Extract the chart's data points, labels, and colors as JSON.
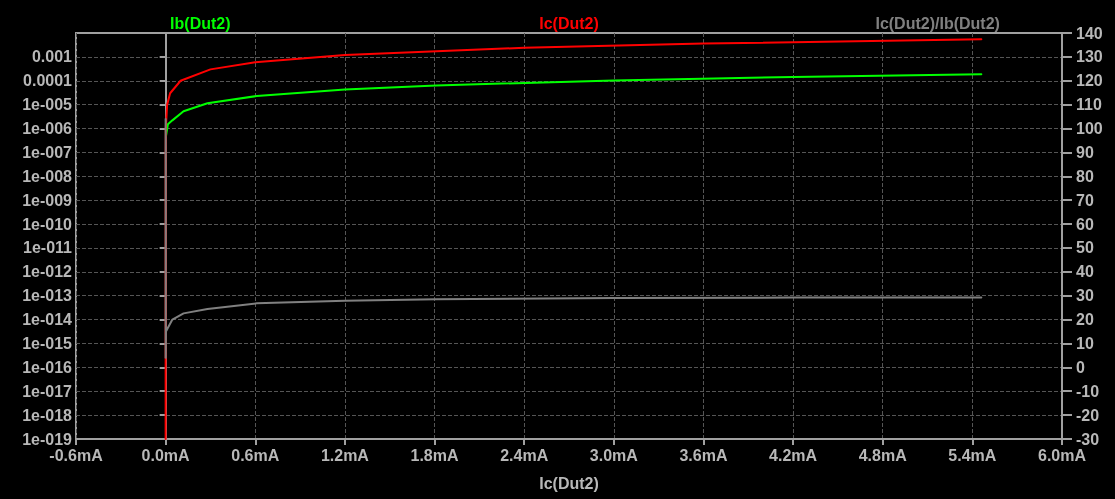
{
  "chart_data": {
    "type": "line",
    "xlabel": "Ic(Dut2)",
    "xlim": [
      -0.6,
      6.0
    ],
    "xticks": [
      {
        "value": -0.6,
        "label": "-0.6mA"
      },
      {
        "value": 0,
        "label": "0.0mA"
      },
      {
        "value": 0.6,
        "label": "0.6mA"
      },
      {
        "value": 1.2,
        "label": "1.2mA"
      },
      {
        "value": 1.8,
        "label": "1.8mA"
      },
      {
        "value": 2.4,
        "label": "2.4mA"
      },
      {
        "value": 3.0,
        "label": "3.0mA"
      },
      {
        "value": 3.6,
        "label": "3.6mA"
      },
      {
        "value": 4.2,
        "label": "4.2mA"
      },
      {
        "value": 4.8,
        "label": "4.8mA"
      },
      {
        "value": 5.4,
        "label": "5.4mA"
      },
      {
        "value": 6.0,
        "label": "6.0mA"
      }
    ],
    "log": "y",
    "ylim": [
      1e-19,
      0.01
    ],
    "yticks": [
      0.001,
      0.0001,
      {
        "value": 1e-05,
        "label": "1e-005"
      },
      {
        "value": 1e-06,
        "label": "1e-006"
      },
      {
        "value": 1e-07,
        "label": "1e-007"
      },
      {
        "value": 1e-08,
        "label": "1e-008"
      },
      {
        "value": 1e-09,
        "label": "1e-009"
      },
      {
        "value": 1e-10,
        "label": "1e-010"
      },
      {
        "value": 1e-11,
        "label": "1e-011"
      },
      {
        "value": 1e-12,
        "label": "1e-012"
      },
      {
        "value": 1e-13,
        "label": "1e-013"
      },
      {
        "value": 1e-14,
        "label": "1e-014"
      },
      {
        "value": 1e-15,
        "label": "1e-015"
      },
      {
        "value": 1e-16,
        "label": "1e-016"
      },
      {
        "value": 1e-17,
        "label": "1e-017"
      },
      {
        "value": 1e-18,
        "label": "1e-018"
      },
      {
        "value": 1e-19,
        "label": "1e-019"
      }
    ],
    "y2lim": [
      -30,
      140
    ],
    "y2ticks": [
      -30,
      -20,
      -10,
      0,
      10,
      20,
      30,
      40,
      50,
      60,
      70,
      80,
      90,
      100,
      110,
      120,
      130,
      140
    ],
    "grid": true,
    "legend": "top",
    "line_style": "solid",
    "marker": "none",
    "series": [
      {
        "name": "Ib(Dut2)",
        "color": "#00ff00",
        "x": [
          0.003,
          0.015,
          0.045,
          0.12,
          0.28,
          0.61,
          1.2,
          1.81,
          3.0,
          4.2,
          5.46
        ],
        "values": [
          5e-07,
          1.5e-06,
          2.2e-06,
          5.3e-06,
          1.15e-05,
          2.3e-05,
          4.3e-05,
          6.4e-05,
          0.000103,
          0.000144,
          0.000186
        ]
      },
      {
        "name": "Ic(Dut2)",
        "color": "#ff0000",
        "x": [
          0,
          1e-05,
          0.0001,
          0.001,
          0.01,
          0.03,
          0.1,
          0.3,
          0.6,
          1.2,
          2.4,
          3.6,
          5.46
        ],
        "values": [
          1e-19,
          1e-08,
          1e-07,
          1e-06,
          1e-05,
          3e-05,
          0.0001,
          0.0003,
          0.0006,
          0.0012,
          0.0024,
          0.0036,
          0.00546
        ]
      },
      {
        "name": "Ic(Dut2)/Ib(Dut2)",
        "color": "#808080",
        "axis": "y2",
        "x": [
          0,
          0,
          0.002,
          0.045,
          0.12,
          0.28,
          0.61,
          1.2,
          1.81,
          3.0,
          4.2,
          5.46
        ],
        "values": [
          104,
          4,
          15,
          20,
          22.6,
          24.4,
          26.8,
          27.9,
          28.5,
          29,
          29.2,
          29.3
        ]
      }
    ]
  }
}
